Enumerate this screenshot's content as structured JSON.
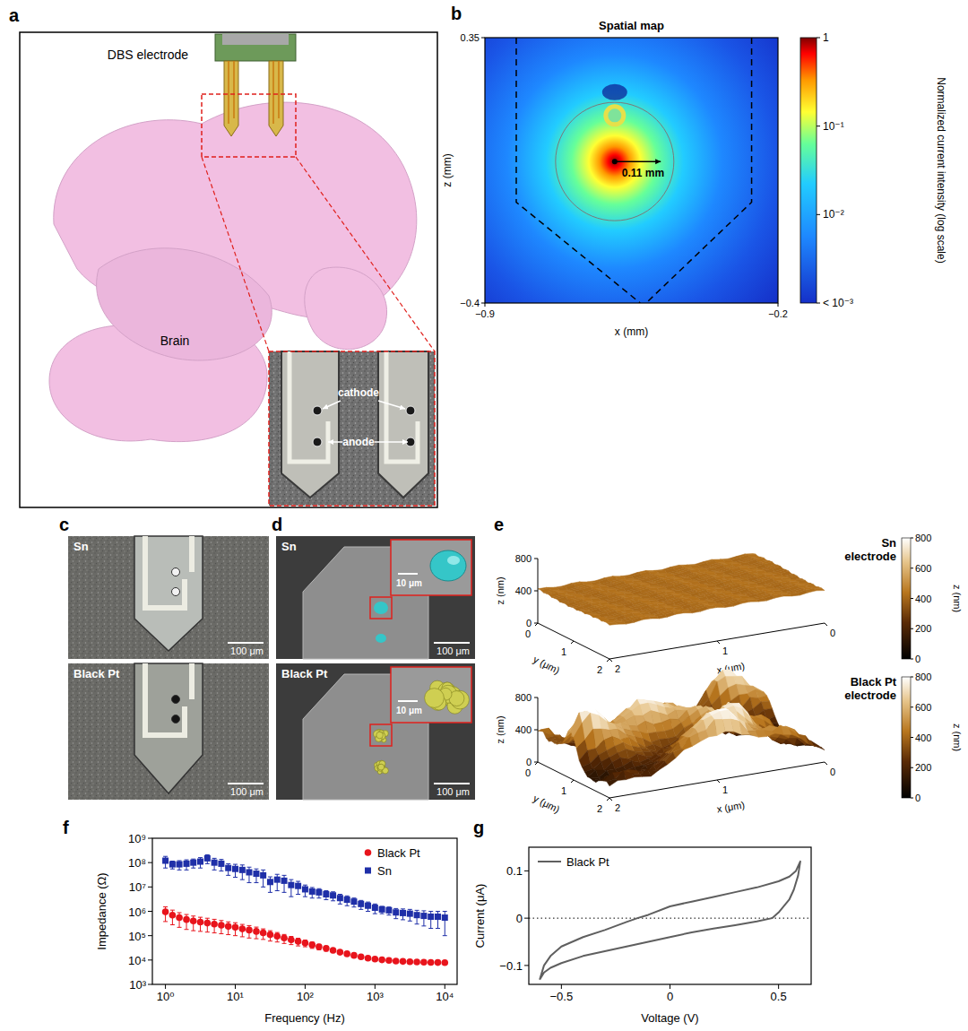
{
  "figure": {
    "a": {
      "letter": "a",
      "labels": {
        "electrode": "DBS electrode",
        "brain": "Brain",
        "cathode": "cathode",
        "anode": "anode"
      }
    },
    "c": {
      "letter": "c",
      "images": [
        {
          "label": "Sn",
          "scale_bar": "100 μm"
        },
        {
          "label": "Black Pt",
          "scale_bar": "100 μm"
        }
      ]
    },
    "d": {
      "letter": "d",
      "images": [
        {
          "label": "Sn",
          "scale_bar": "100 μm",
          "inset_scale_bar": "10 μm"
        },
        {
          "label": "Black Pt",
          "scale_bar": "100 μm",
          "inset_scale_bar": "10 μm"
        }
      ]
    },
    "e": {
      "letter": "e",
      "surfaces": [
        {
          "title": "Sn electrode",
          "x_label": "x (μm)",
          "y_label": "y (μm)",
          "z_label": "z (nm)",
          "xlim": [
            0,
            2
          ],
          "ylim": [
            0,
            2
          ],
          "zlim": [
            0,
            800
          ],
          "xticks": [
            0,
            1,
            2
          ],
          "yticks": [
            0,
            1,
            2
          ],
          "zticks": [
            0,
            400,
            800
          ],
          "colorbar": {
            "label": "z (nm)",
            "range": [
              0,
              800
            ],
            "ticks": [
              0,
              200,
              400,
              600,
              800
            ]
          }
        },
        {
          "title": "Black Pt electrode",
          "x_label": "x (μm)",
          "y_label": "y (μm)",
          "z_label": "z (nm)",
          "xlim": [
            0,
            2
          ],
          "ylim": [
            0,
            2
          ],
          "zlim": [
            0,
            800
          ],
          "xticks": [
            0,
            1,
            2
          ],
          "yticks": [
            0,
            1,
            2
          ],
          "zticks": [
            0,
            400,
            800
          ],
          "colorbar": {
            "label": "z (nm)",
            "range": [
              0,
              800
            ],
            "ticks": [
              0,
              200,
              400,
              600,
              800
            ]
          }
        }
      ]
    }
  },
  "chart_data": [
    {
      "type": "heatmap",
      "letter": "b",
      "title": "Spatial map",
      "x_label": "x (mm)",
      "y_label": "z (mm)",
      "xlim": [
        -0.9,
        -0.2
      ],
      "ylim": [
        -0.4,
        0.35
      ],
      "xticks": [
        {
          "value": -0.9,
          "label": "−0.9"
        },
        {
          "value": -0.2,
          "label": "−0.2"
        }
      ],
      "yticks": [
        {
          "value": -0.4,
          "label": "−0.4"
        },
        0.35
      ],
      "anode": {
        "x": -0.59,
        "z": 0
      },
      "cathode": {
        "x": -0.59,
        "z": 0.13
      },
      "annotation": {
        "value": 0.11,
        "label": "0.11 mm"
      },
      "colorbar": {
        "label": "Normalized current intensity (log scale)",
        "range": [
          0.001,
          1
        ],
        "log": true,
        "ticks": [
          1,
          {
            "value": 0.1,
            "label": "10⁻¹"
          },
          {
            "value": 0.01,
            "label": "10⁻²"
          },
          {
            "value": 0.001,
            "label": "< 10⁻³"
          }
        ]
      }
    },
    {
      "type": "scatter",
      "letter": "f",
      "x_label": "Frequency (Hz)",
      "y_label": "Impedance (Ω)",
      "log": true,
      "xlim": [
        0.65,
        15000
      ],
      "ylim": [
        1000,
        1000000000
      ],
      "xticks": [
        {
          "value": 1,
          "label": "10⁰"
        },
        {
          "value": 10,
          "label": "10¹"
        },
        {
          "value": 100,
          "label": "10²"
        },
        {
          "value": 1000,
          "label": "10³"
        },
        {
          "value": 10000,
          "label": "10⁴"
        }
      ],
      "yticks": [
        {
          "value": 1000,
          "label": "10³"
        },
        {
          "value": 10000,
          "label": "10⁴"
        },
        {
          "value": 100000,
          "label": "10⁵"
        },
        {
          "value": 1000000,
          "label": "10⁶"
        },
        {
          "value": 10000000,
          "label": "10⁷"
        },
        {
          "value": 100000000,
          "label": "10⁸"
        },
        {
          "value": 1000000000,
          "label": "10⁹"
        }
      ],
      "legend": "upper right",
      "x": [
        1,
        1.26,
        1.58,
        2,
        2.51,
        3.16,
        3.98,
        5.01,
        6.31,
        7.94,
        10,
        12.6,
        15.8,
        20,
        25.1,
        31.6,
        39.8,
        50.1,
        63.1,
        79.4,
        100,
        126,
        158,
        200,
        251,
        316,
        398,
        501,
        631,
        794,
        1000,
        1259,
        1585,
        1995,
        2512,
        3162,
        3981,
        5012,
        6310,
        7943,
        10000
      ],
      "series": [
        {
          "name": "Black Pt",
          "color": "#e8141c",
          "marker": "circle",
          "values": [
            950000.0,
            700000.0,
            550000.0,
            460000.0,
            400000.0,
            360000.0,
            330000.0,
            300000.0,
            270000.0,
            240000.0,
            220000.0,
            190000.0,
            170000.0,
            150000.0,
            130000.0,
            110000.0,
            95000.0,
            80000.0,
            68000.0,
            58000.0,
            50000.0,
            42000.0,
            35000.0,
            30000.0,
            25000.0,
            21000.0,
            18000.0,
            15500.0,
            13500.0,
            12000.0,
            11000.0,
            10200.0,
            9600.0,
            9100.0,
            8800.0,
            8500.0,
            8300.0,
            8100.0,
            8000.0,
            7900.0,
            7800.0
          ],
          "errors": [
            570000.0,
            420000.0,
            330000.0,
            280000.0,
            240000.0,
            210000.0,
            190000.0,
            170000.0,
            150000.0,
            130000.0,
            120000.0,
            100000.0,
            90000.0,
            75000.0,
            60000.0,
            50000.0,
            40000.0,
            32000.0,
            25000.0,
            20000.0,
            15000.0,
            12000.0,
            9000.0,
            7000.0,
            5000.0,
            4000.0,
            3000.0,
            2200.0,
            1600.0,
            1200.0,
            900.0,
            700.0,
            500.0,
            400.0,
            300.0,
            250.0,
            200.0,
            150.0,
            120.0,
            100.0,
            100.0
          ]
        },
        {
          "name": "Sn",
          "color": "#1f2fa8",
          "marker": "square",
          "values": [
            120000000.0,
            85000000.0,
            85000000.0,
            90000000.0,
            100000000.0,
            110000000.0,
            150000000.0,
            100000000.0,
            90000000.0,
            60000000.0,
            55000000.0,
            50000000.0,
            40000000.0,
            35000000.0,
            30000000.0,
            16000000.0,
            20000000.0,
            18000000.0,
            12000000.0,
            11000000.0,
            8000000.0,
            6500000.0,
            6000000.0,
            5000000.0,
            4500000.0,
            3500000.0,
            3000000.0,
            2500000.0,
            2000000.0,
            1700000.0,
            1400000.0,
            1200000.0,
            1100000.0,
            900000.0,
            850000.0,
            800000.0,
            700000.0,
            650000.0,
            600000.0,
            600000.0,
            550000.0
          ],
          "errors": [
            60000000.0,
            30000000.0,
            35000000.0,
            40000000.0,
            40000000.0,
            50000000.0,
            60000000.0,
            50000000.0,
            45000000.0,
            30000000.0,
            30000000.0,
            30000000.0,
            25000000.0,
            20000000.0,
            20000000.0,
            10000000.0,
            13000000.0,
            12000000.0,
            8000000.0,
            6000000.0,
            4000000.0,
            3000000.0,
            2500000.0,
            2000000.0,
            1800000.0,
            1500000.0,
            1300000.0,
            1000000.0,
            800000.0,
            700000.0,
            600000.0,
            400000.0,
            400000.0,
            400000.0,
            400000.0,
            400000.0,
            400000.0,
            400000.0,
            400000.0,
            400000.0,
            450000.0
          ]
        }
      ]
    },
    {
      "type": "line",
      "letter": "g",
      "x_label": "Voltage (V)",
      "y_label": "Current (μA)",
      "xlim": [
        -0.65,
        0.65
      ],
      "ylim": [
        -0.14,
        0.15
      ],
      "xticks": [
        {
          "value": -0.5,
          "label": "−0.5"
        },
        0,
        0.5
      ],
      "yticks": [
        {
          "value": -0.1,
          "label": "−0.1"
        },
        0,
        0.1
      ],
      "legend": "upper left",
      "reference_line": {
        "value": 0,
        "line_style": "dotted"
      },
      "x": [
        -0.6,
        -0.58,
        -0.55,
        -0.5,
        -0.4,
        -0.3,
        -0.2,
        -0.15,
        -0.1,
        0,
        0.1,
        0.2,
        0.3,
        0.4,
        0.5,
        0.55,
        0.58,
        0.6,
        0.59,
        0.57,
        0.55,
        0.5,
        0.47,
        0.4,
        0.3,
        0.2,
        0.1,
        0,
        -0.1,
        -0.2,
        -0.3,
        -0.4,
        -0.5,
        -0.55,
        -0.58,
        -0.6
      ],
      "series": [
        {
          "name": "Black Pt",
          "color": "#5f5f5f",
          "line_style": "solid",
          "values": [
            -0.13,
            -0.1,
            -0.08,
            -0.06,
            -0.04,
            -0.025,
            -0.008,
            0,
            0.007,
            0.025,
            0.035,
            0.045,
            0.055,
            0.065,
            0.078,
            0.088,
            0.1,
            0.12,
            0.09,
            0.06,
            0.04,
            0.012,
            0,
            -0.007,
            -0.015,
            -0.022,
            -0.03,
            -0.04,
            -0.05,
            -0.06,
            -0.07,
            -0.08,
            -0.095,
            -0.105,
            -0.115,
            -0.13
          ]
        }
      ]
    }
  ]
}
